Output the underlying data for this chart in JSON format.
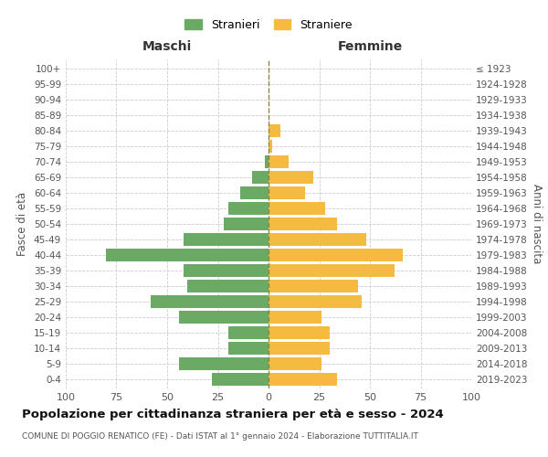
{
  "age_groups": [
    "0-4",
    "5-9",
    "10-14",
    "15-19",
    "20-24",
    "25-29",
    "30-34",
    "35-39",
    "40-44",
    "45-49",
    "50-54",
    "55-59",
    "60-64",
    "65-69",
    "70-74",
    "75-79",
    "80-84",
    "85-89",
    "90-94",
    "95-99",
    "100+"
  ],
  "birth_years": [
    "2019-2023",
    "2014-2018",
    "2009-2013",
    "2004-2008",
    "1999-2003",
    "1994-1998",
    "1989-1993",
    "1984-1988",
    "1979-1983",
    "1974-1978",
    "1969-1973",
    "1964-1968",
    "1959-1963",
    "1954-1958",
    "1949-1953",
    "1944-1948",
    "1939-1943",
    "1934-1938",
    "1929-1933",
    "1924-1928",
    "≤ 1923"
  ],
  "maschi": [
    28,
    44,
    20,
    20,
    44,
    58,
    40,
    42,
    80,
    42,
    22,
    20,
    14,
    8,
    2,
    0,
    0,
    0,
    0,
    0,
    0
  ],
  "femmine": [
    34,
    26,
    30,
    30,
    26,
    46,
    44,
    62,
    66,
    48,
    34,
    28,
    18,
    22,
    10,
    2,
    6,
    0,
    0,
    0,
    0
  ],
  "male_color": "#6aaa64",
  "female_color": "#f5bb40",
  "grid_color": "#cccccc",
  "title": "Popolazione per cittadinanza straniera per età e sesso - 2024",
  "subtitle": "COMUNE DI POGGIO RENATICO (FE) - Dati ISTAT al 1° gennaio 2024 - Elaborazione TUTTITALIA.IT",
  "xlabel_left": "Maschi",
  "xlabel_right": "Femmine",
  "ylabel_left": "Fasce di età",
  "ylabel_right": "Anni di nascita",
  "legend_male": "Stranieri",
  "legend_female": "Straniere",
  "xlim": 100
}
